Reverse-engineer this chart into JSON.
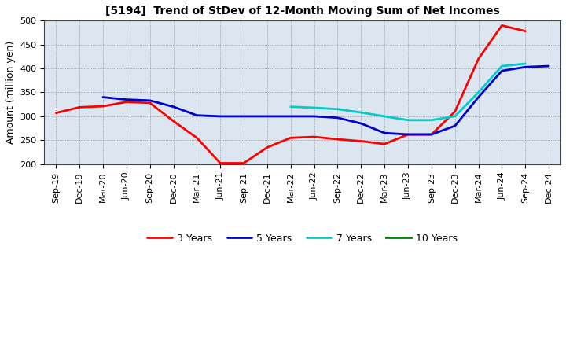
{
  "title": "[5194]  Trend of StDev of 12-Month Moving Sum of Net Incomes",
  "ylabel": "Amount (million yen)",
  "ylim": [
    200,
    500
  ],
  "yticks": [
    200,
    250,
    300,
    350,
    400,
    450,
    500
  ],
  "plot_bg_color": "#dce6f1",
  "fig_bg_color": "#ffffff",
  "x_labels": [
    "Sep-19",
    "Dec-19",
    "Mar-20",
    "Jun-20",
    "Sep-20",
    "Dec-20",
    "Mar-21",
    "Jun-21",
    "Sep-21",
    "Dec-21",
    "Mar-22",
    "Jun-22",
    "Sep-22",
    "Dec-22",
    "Mar-23",
    "Jun-23",
    "Sep-23",
    "Dec-23",
    "Mar-24",
    "Jun-24",
    "Sep-24",
    "Dec-24"
  ],
  "series": {
    "3 Years": {
      "color": "#ff0000",
      "values": [
        307,
        319,
        321,
        330,
        328,
        290,
        255,
        202,
        202,
        235,
        255,
        257,
        252,
        248,
        242,
        262,
        262,
        310,
        420,
        490,
        478,
        null
      ]
    },
    "5 Years": {
      "color": "#0000cc",
      "values": [
        null,
        null,
        340,
        335,
        333,
        320,
        302,
        300,
        300,
        300,
        300,
        300,
        297,
        285,
        265,
        262,
        262,
        280,
        340,
        395,
        403,
        405
      ]
    },
    "7 Years": {
      "color": "#00cccc",
      "values": [
        null,
        null,
        null,
        null,
        null,
        null,
        null,
        null,
        null,
        null,
        320,
        318,
        315,
        308,
        300,
        292,
        292,
        300,
        350,
        405,
        410,
        null
      ]
    },
    "10 Years": {
      "color": "#008000",
      "values": [
        null,
        null,
        null,
        null,
        null,
        null,
        null,
        null,
        null,
        null,
        null,
        null,
        null,
        null,
        null,
        null,
        null,
        null,
        null,
        null,
        null,
        null
      ]
    }
  },
  "legend_entries": [
    "3 Years",
    "5 Years",
    "7 Years",
    "10 Years"
  ],
  "legend_colors": [
    "#ff0000",
    "#0000cc",
    "#00cccc",
    "#008000"
  ],
  "linewidth": 2.0,
  "title_fontsize": 10,
  "ylabel_fontsize": 9,
  "tick_fontsize": 8,
  "legend_fontsize": 9
}
